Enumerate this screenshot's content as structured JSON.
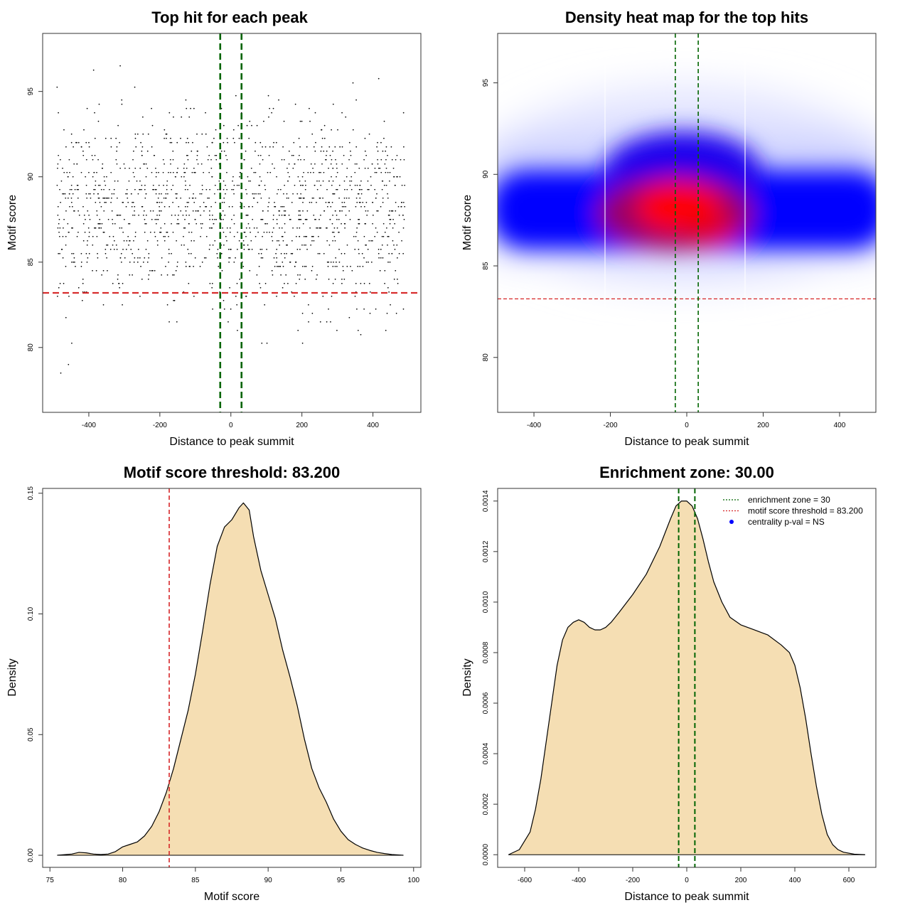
{
  "chart_data": [
    {
      "id": "scatter",
      "type": "scatter",
      "title": "Top hit for each peak",
      "xlabel": "Distance to peak summit",
      "ylabel": "Motif score",
      "xlim": [
        -530,
        535
      ],
      "ylim": [
        76.2,
        98.4
      ],
      "xticks": [
        -400,
        -200,
        0,
        200,
        400
      ],
      "yticks": [
        80,
        85,
        90,
        95
      ],
      "xtick_labels": [
        "-400",
        "-200",
        "0",
        "200",
        "400"
      ],
      "ytick_labels": [
        "80",
        "85",
        "90",
        "95"
      ],
      "vlines": [
        -30,
        30
      ],
      "hline": 83.2,
      "n_points": 1500,
      "x_range": [
        -490,
        490
      ],
      "score_mean": 88.0,
      "score_sd": 2.7,
      "colors": {
        "points": "#000000",
        "vline": "#006400",
        "hline": "#d62728"
      }
    },
    {
      "id": "heatmap",
      "type": "heatmap",
      "title": "Density heat map for the top hits",
      "xlabel": "Distance to peak summit",
      "ylabel": "Motif score",
      "xlim": [
        -495,
        495
      ],
      "ylim": [
        77.0,
        97.7
      ],
      "xticks": [
        -400,
        -200,
        0,
        200,
        400
      ],
      "yticks": [
        80,
        85,
        90,
        95
      ],
      "xtick_labels": [
        "-400",
        "-200",
        "0",
        "200",
        "400"
      ],
      "ytick_labels": [
        "80",
        "85",
        "90",
        "95"
      ],
      "vlines": [
        -30,
        30
      ],
      "hline": 83.2,
      "density_center": {
        "x": -10,
        "y": 88.2
      },
      "colors": {
        "low": "#ffffff",
        "mid": "#0000ff",
        "high": "#ff0000",
        "vline": "#006400",
        "hline": "#d62728"
      }
    },
    {
      "id": "score-density",
      "type": "area",
      "title": "Motif score threshold: 83.200",
      "xlabel": "Motif score",
      "ylabel": "Density",
      "xlim": [
        74.5,
        100.5
      ],
      "ylim": [
        -0.005,
        0.152
      ],
      "xticks": [
        75,
        80,
        85,
        90,
        95,
        100
      ],
      "yticks": [
        0,
        0.05,
        0.1,
        0.15
      ],
      "xtick_labels": [
        "75",
        "80",
        "85",
        "90",
        "95",
        "100"
      ],
      "ytick_labels": [
        "0.00",
        "0.05",
        "0.10",
        "0.15"
      ],
      "x": [
        75.5,
        76.5,
        77,
        77.5,
        78,
        78.5,
        79,
        79.5,
        80,
        80.5,
        81,
        81.5,
        82,
        82.5,
        83,
        83.5,
        84,
        84.5,
        85,
        85.5,
        86,
        86.5,
        87,
        87.5,
        88,
        88.3,
        88.7,
        89,
        89.5,
        90,
        90.5,
        91,
        91.5,
        92,
        92.5,
        93,
        93.5,
        94,
        94.5,
        95,
        95.5,
        96,
        96.5,
        97,
        97.5,
        98,
        98.5,
        99.3
      ],
      "y": [
        0,
        0.0005,
        0.0012,
        0.001,
        0.0005,
        0.0003,
        0.0005,
        0.0015,
        0.0035,
        0.0045,
        0.0055,
        0.008,
        0.012,
        0.018,
        0.026,
        0.036,
        0.048,
        0.06,
        0.075,
        0.093,
        0.112,
        0.128,
        0.136,
        0.139,
        0.144,
        0.146,
        0.143,
        0.132,
        0.118,
        0.108,
        0.098,
        0.085,
        0.074,
        0.062,
        0.048,
        0.036,
        0.028,
        0.022,
        0.015,
        0.01,
        0.0065,
        0.0045,
        0.003,
        0.002,
        0.0012,
        0.0007,
        0.0003,
        0
      ],
      "vlines": [
        83.2
      ],
      "colors": {
        "fill": "#f5deb3",
        "line": "#000000",
        "vline": "#d62728"
      }
    },
    {
      "id": "distance-density",
      "type": "area",
      "title": "Enrichment zone: 30.00",
      "xlabel": "Distance to peak summit",
      "ylabel": "Density",
      "xlim": [
        -700,
        700
      ],
      "ylim": [
        -5e-05,
        0.00145
      ],
      "xticks": [
        -600,
        -400,
        -200,
        0,
        200,
        400,
        600
      ],
      "yticks": [
        0,
        0.0002,
        0.0004,
        0.0006,
        0.0008,
        0.001,
        0.0012,
        0.0014
      ],
      "xtick_labels": [
        "-600",
        "-400",
        "-200",
        "0",
        "200",
        "400",
        "600"
      ],
      "ytick_labels": [
        "0.0000",
        "0.0002",
        "0.0004",
        "0.0006",
        "0.0008",
        "0.0010",
        "0.0012",
        "0.0014"
      ],
      "x": [
        -660,
        -620,
        -580,
        -560,
        -540,
        -520,
        -500,
        -480,
        -460,
        -440,
        -420,
        -400,
        -380,
        -360,
        -340,
        -320,
        -300,
        -280,
        -250,
        -200,
        -150,
        -100,
        -60,
        -40,
        -20,
        0,
        20,
        40,
        60,
        80,
        100,
        130,
        160,
        200,
        250,
        300,
        350,
        380,
        400,
        420,
        440,
        460,
        480,
        500,
        520,
        540,
        560,
        580,
        620,
        660
      ],
      "y": [
        0,
        2e-05,
        9e-05,
        0.00018,
        0.0003,
        0.00045,
        0.0006,
        0.00075,
        0.00085,
        0.0009,
        0.00092,
        0.00093,
        0.00092,
        0.0009,
        0.00089,
        0.00089,
        0.0009,
        0.00092,
        0.00096,
        0.00103,
        0.00111,
        0.00122,
        0.00133,
        0.00138,
        0.0014,
        0.0014,
        0.00138,
        0.00133,
        0.00125,
        0.00116,
        0.00108,
        0.001,
        0.00094,
        0.00091,
        0.00089,
        0.00087,
        0.00083,
        0.0008,
        0.00075,
        0.00066,
        0.00054,
        0.0004,
        0.00027,
        0.00016,
        8e-05,
        4e-05,
        2e-05,
        1e-05,
        2e-06,
        0
      ],
      "vlines": [
        -30,
        30
      ],
      "legend": [
        {
          "label": "enrichment zone = 30",
          "style": "dotted",
          "color": "#006400"
        },
        {
          "label": "motif score threshold = 83.200",
          "style": "dotted",
          "color": "#d62728"
        },
        {
          "label": "centrality p-val = NS",
          "style": "point",
          "color": "#0000ff"
        }
      ],
      "colors": {
        "fill": "#f5deb3",
        "line": "#000000",
        "vline": "#006400"
      }
    }
  ]
}
